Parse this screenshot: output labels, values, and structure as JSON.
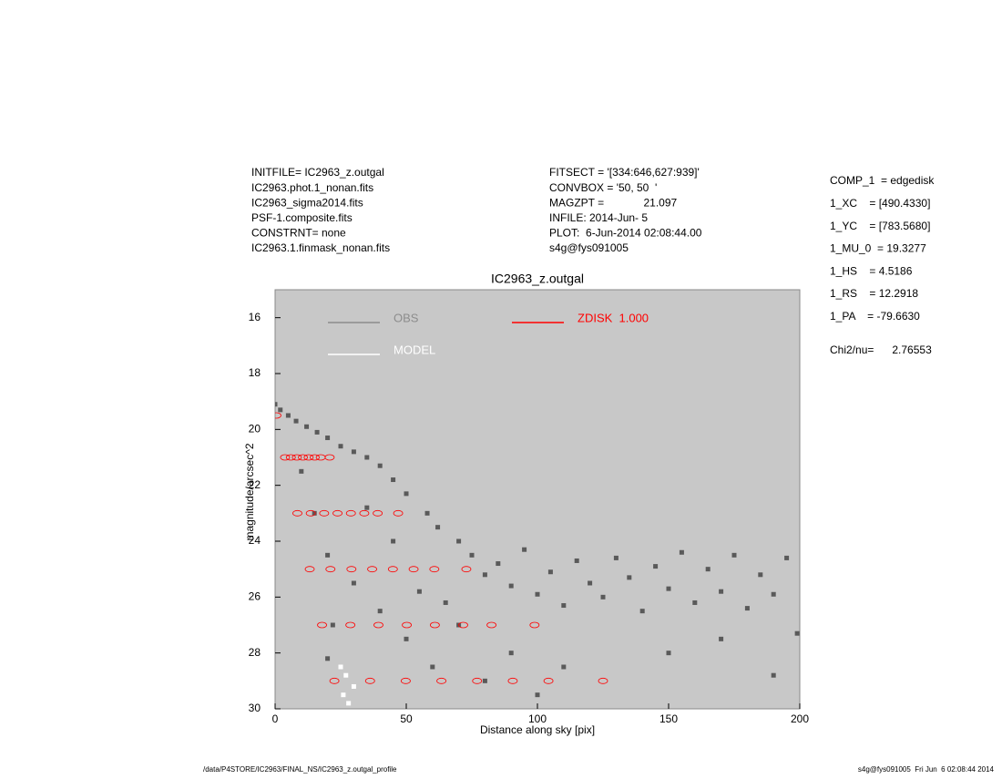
{
  "chart_data": {
    "type": "scatter",
    "title": "IC2963_z.outgal",
    "x_label": "Distance along sky [pix]",
    "y_label": "magnitude/arcsec^2",
    "xlim": [
      0,
      200
    ],
    "ylim": [
      15,
      30
    ],
    "y_inverted": true,
    "xticks": [
      0,
      50,
      100,
      150,
      200
    ],
    "yticks": [
      16,
      18,
      20,
      22,
      24,
      26,
      28,
      30
    ],
    "background": "#c8c8c8",
    "header_left": [
      "INITFILE= IC2963_z.outgal",
      "IC2963.phot.1_nonan.fits",
      "IC2963_sigma2014.fits",
      "PSF-1.composite.fits",
      "CONSTRNT= none",
      "IC2963.1.finmask_nonan.fits"
    ],
    "header_middle": [
      "FITSECT = '[334:646,627:939]'",
      "CONVBOX = '50, 50  '",
      "MAGZPT =             21.097",
      "INFILE: 2014-Jun- 5",
      "PLOT:  6-Jun-2014 02:08:44.00",
      "s4g@fys091005"
    ],
    "parameters": [
      "COMP_1  = edgedisk",
      "1_XC    = [490.4330]",
      "1_YC    = [783.5680]",
      "1_MU_0  = 19.3277",
      "1_HS    = 4.5186",
      "1_RS    = 12.2918",
      "1_PA    = -79.6630",
      "Chi2/nu=      2.76553"
    ],
    "footer_left": "/data/P4STORE/IC2963/FINAL_NS/IC2963_z.outgal_profile",
    "footer_right": "s4g@fys091005  Fri Jun  6 02:08:44 2014",
    "series": [
      {
        "name": "OBS",
        "color": "#5a5a5a",
        "legend_color": "#8c8c8c",
        "marker": "square",
        "x": [
          0,
          2,
          5,
          8,
          12,
          16,
          20,
          25,
          30,
          35,
          40,
          45,
          50,
          58,
          62,
          70,
          75,
          80,
          85,
          90,
          95,
          100,
          105,
          110,
          115,
          120,
          125,
          130,
          135,
          140,
          145,
          150,
          155,
          160,
          165,
          170,
          175,
          180,
          185,
          190,
          195,
          199,
          10,
          15,
          20,
          22,
          20,
          30,
          40,
          50,
          60,
          45,
          35,
          55,
          70,
          80,
          65,
          90,
          100,
          110,
          150,
          170,
          190
        ],
        "values": [
          19.1,
          19.3,
          19.5,
          19.7,
          19.9,
          20.1,
          20.3,
          20.6,
          20.8,
          21.0,
          21.3,
          21.8,
          22.3,
          23.0,
          23.5,
          24.0,
          24.5,
          25.2,
          24.8,
          25.6,
          24.3,
          25.9,
          25.1,
          26.3,
          24.7,
          25.5,
          26.0,
          24.6,
          25.3,
          26.5,
          24.9,
          25.7,
          24.4,
          26.2,
          25.0,
          25.8,
          24.5,
          26.4,
          25.2,
          25.9,
          24.6,
          27.3,
          21.5,
          23.0,
          24.5,
          27.0,
          28.2,
          25.5,
          26.5,
          27.5,
          28.5,
          24.0,
          22.8,
          25.8,
          27.0,
          29.0,
          26.2,
          28.0,
          29.5,
          28.5,
          28.0,
          27.5,
          28.8
        ]
      },
      {
        "name": "MODEL",
        "color": "#ffffff",
        "legend_color": "#ffffff",
        "marker": "square",
        "x": [
          26,
          27,
          28,
          30,
          25
        ],
        "values": [
          29.5,
          28.8,
          29.8,
          29.2,
          28.5
        ]
      },
      {
        "name": "ZDISK  1.000",
        "color": "#ff0000",
        "legend_color": "#ff0000",
        "marker": "circle",
        "x": [
          0.5,
          3.8,
          8.5,
          13.2,
          17.9,
          22.6,
          6.0,
          13.6,
          21.1,
          28.7,
          36.2,
          8.3,
          18.7,
          29.1,
          39.4,
          49.8,
          10.6,
          23.8,
          37.0,
          50.2,
          63.4,
          12.8,
          28.9,
          44.9,
          60.9,
          77.0,
          15.1,
          34.0,
          52.8,
          71.7,
          90.6,
          17.4,
          39.1,
          60.7,
          82.5,
          104.2,
          20.8,
          46.9,
          72.9,
          98.9,
          125.0
        ],
        "values": [
          19.5,
          21,
          23,
          25,
          27,
          29,
          21,
          23,
          25,
          27,
          29,
          21,
          23,
          25,
          27,
          29,
          21,
          23,
          25,
          27,
          29,
          21,
          23,
          25,
          27,
          29,
          21,
          23,
          25,
          27,
          29,
          21,
          23,
          25,
          27,
          29,
          21,
          23,
          25,
          27,
          29
        ]
      }
    ]
  }
}
